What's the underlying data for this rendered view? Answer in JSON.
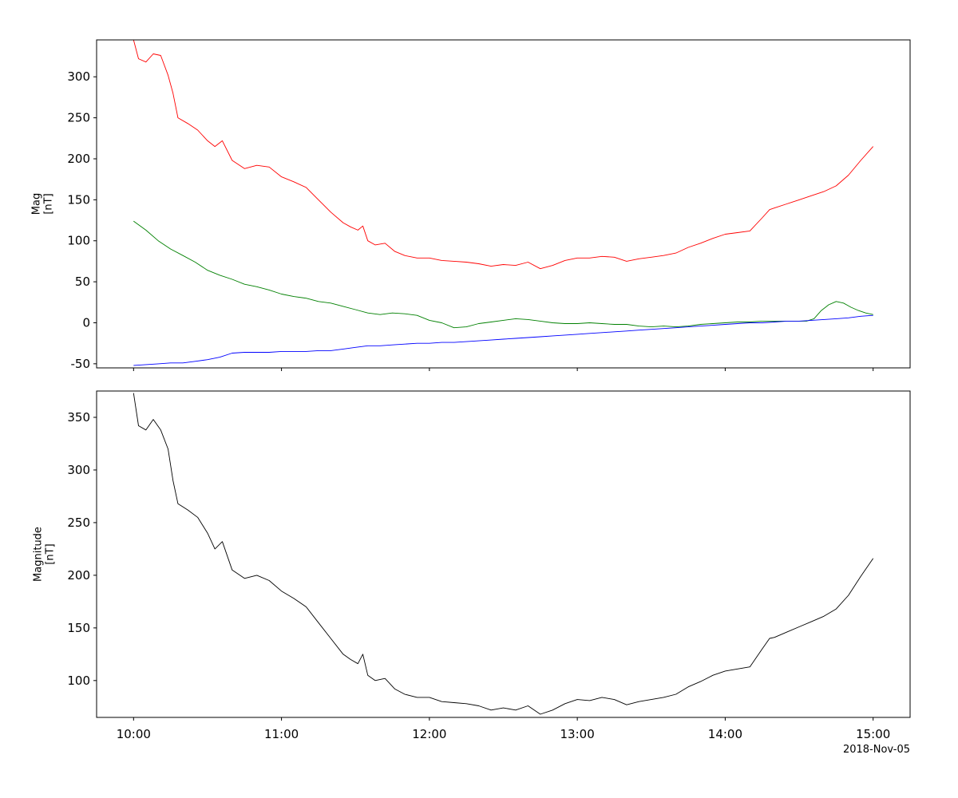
{
  "chart_data": [
    {
      "type": "line",
      "ylabel": "Mag",
      "yunit": "[nT]",
      "ylim": [
        -55,
        345
      ],
      "yticks": [
        -50,
        0,
        50,
        100,
        150,
        200,
        250,
        300
      ],
      "xlim": [
        "09:45",
        "15:15"
      ],
      "xticks": [
        "10:00",
        "11:00",
        "12:00",
        "13:00",
        "14:00",
        "15:00"
      ],
      "show_x_tick_labels": false,
      "grid": false,
      "series": [
        {
          "color": "#ff0000",
          "points": [
            [
              "10:00",
              345
            ],
            [
              "10:02",
              322
            ],
            [
              "10:05",
              318
            ],
            [
              "10:08",
              328
            ],
            [
              "10:11",
              326
            ],
            [
              "10:14",
              302
            ],
            [
              "10:16",
              280
            ],
            [
              "10:18",
              250
            ],
            [
              "10:22",
              243
            ],
            [
              "10:26",
              235
            ],
            [
              "10:30",
              222
            ],
            [
              "10:33",
              215
            ],
            [
              "10:36",
              222
            ],
            [
              "10:40",
              198
            ],
            [
              "10:45",
              188
            ],
            [
              "10:50",
              192
            ],
            [
              "10:55",
              190
            ],
            [
              "11:00",
              178
            ],
            [
              "11:05",
              172
            ],
            [
              "11:10",
              165
            ],
            [
              "11:15",
              150
            ],
            [
              "11:20",
              135
            ],
            [
              "11:25",
              122
            ],
            [
              "11:28",
              117
            ],
            [
              "11:31",
              113
            ],
            [
              "11:33",
              118
            ],
            [
              "11:35",
              100
            ],
            [
              "11:38",
              95
            ],
            [
              "11:42",
              97
            ],
            [
              "11:46",
              87
            ],
            [
              "11:50",
              82
            ],
            [
              "11:55",
              79
            ],
            [
              "12:00",
              79
            ],
            [
              "12:05",
              76
            ],
            [
              "12:10",
              75
            ],
            [
              "12:15",
              74
            ],
            [
              "12:20",
              72
            ],
            [
              "12:25",
              69
            ],
            [
              "12:30",
              71
            ],
            [
              "12:35",
              70
            ],
            [
              "12:40",
              74
            ],
            [
              "12:45",
              66
            ],
            [
              "12:50",
              70
            ],
            [
              "12:55",
              76
            ],
            [
              "13:00",
              79
            ],
            [
              "13:05",
              79
            ],
            [
              "13:10",
              81
            ],
            [
              "13:15",
              80
            ],
            [
              "13:20",
              75
            ],
            [
              "13:25",
              78
            ],
            [
              "13:30",
              80
            ],
            [
              "13:35",
              82
            ],
            [
              "13:40",
              85
            ],
            [
              "13:45",
              92
            ],
            [
              "13:50",
              97
            ],
            [
              "13:55",
              103
            ],
            [
              "14:00",
              108
            ],
            [
              "14:05",
              110
            ],
            [
              "14:10",
              112
            ],
            [
              "14:15",
              128
            ],
            [
              "14:18",
              138
            ],
            [
              "14:20",
              140
            ],
            [
              "14:25",
              145
            ],
            [
              "14:30",
              150
            ],
            [
              "14:35",
              155
            ],
            [
              "14:40",
              160
            ],
            [
              "14:45",
              167
            ],
            [
              "14:50",
              180
            ],
            [
              "14:55",
              198
            ],
            [
              "15:00",
              215
            ]
          ]
        },
        {
          "color": "#008000",
          "points": [
            [
              "10:00",
              124
            ],
            [
              "10:05",
              113
            ],
            [
              "10:10",
              100
            ],
            [
              "10:15",
              90
            ],
            [
              "10:20",
              82
            ],
            [
              "10:25",
              74
            ],
            [
              "10:30",
              64
            ],
            [
              "10:35",
              58
            ],
            [
              "10:40",
              53
            ],
            [
              "10:45",
              47
            ],
            [
              "10:50",
              44
            ],
            [
              "10:55",
              40
            ],
            [
              "11:00",
              35
            ],
            [
              "11:05",
              32
            ],
            [
              "11:10",
              30
            ],
            [
              "11:15",
              26
            ],
            [
              "11:20",
              24
            ],
            [
              "11:25",
              20
            ],
            [
              "11:30",
              16
            ],
            [
              "11:35",
              12
            ],
            [
              "11:40",
              10
            ],
            [
              "11:45",
              12
            ],
            [
              "11:50",
              11
            ],
            [
              "11:55",
              9
            ],
            [
              "12:00",
              3
            ],
            [
              "12:05",
              0
            ],
            [
              "12:10",
              -6
            ],
            [
              "12:15",
              -5
            ],
            [
              "12:20",
              -1
            ],
            [
              "12:25",
              1
            ],
            [
              "12:30",
              3
            ],
            [
              "12:35",
              5
            ],
            [
              "12:40",
              4
            ],
            [
              "12:45",
              2
            ],
            [
              "12:50",
              0
            ],
            [
              "12:55",
              -1
            ],
            [
              "13:00",
              -1
            ],
            [
              "13:05",
              0
            ],
            [
              "13:10",
              -1
            ],
            [
              "13:15",
              -2
            ],
            [
              "13:20",
              -2
            ],
            [
              "13:25",
              -4
            ],
            [
              "13:30",
              -5
            ],
            [
              "13:35",
              -4
            ],
            [
              "13:40",
              -5
            ],
            [
              "13:45",
              -4
            ],
            [
              "13:50",
              -2
            ],
            [
              "13:55",
              -1
            ],
            [
              "14:00",
              0
            ],
            [
              "14:05",
              1
            ],
            [
              "14:10",
              1
            ],
            [
              "14:15",
              2
            ],
            [
              "14:20",
              2
            ],
            [
              "14:25",
              2
            ],
            [
              "14:30",
              2
            ],
            [
              "14:33",
              2
            ],
            [
              "14:36",
              5
            ],
            [
              "14:39",
              15
            ],
            [
              "14:42",
              22
            ],
            [
              "14:45",
              26
            ],
            [
              "14:48",
              24
            ],
            [
              "14:51",
              19
            ],
            [
              "14:54",
              15
            ],
            [
              "14:57",
              12
            ],
            [
              "15:00",
              10
            ]
          ]
        },
        {
          "color": "#0000ff",
          "points": [
            [
              "10:00",
              -52
            ],
            [
              "10:05",
              -51
            ],
            [
              "10:10",
              -50
            ],
            [
              "10:15",
              -49
            ],
            [
              "10:20",
              -49
            ],
            [
              "10:25",
              -47
            ],
            [
              "10:30",
              -45
            ],
            [
              "10:35",
              -42
            ],
            [
              "10:40",
              -37
            ],
            [
              "10:45",
              -36
            ],
            [
              "10:50",
              -36
            ],
            [
              "10:55",
              -36
            ],
            [
              "11:00",
              -35
            ],
            [
              "11:05",
              -35
            ],
            [
              "11:10",
              -35
            ],
            [
              "11:15",
              -34
            ],
            [
              "11:20",
              -34
            ],
            [
              "11:25",
              -32
            ],
            [
              "11:30",
              -30
            ],
            [
              "11:35",
              -28
            ],
            [
              "11:40",
              -28
            ],
            [
              "11:45",
              -27
            ],
            [
              "11:50",
              -26
            ],
            [
              "11:55",
              -25
            ],
            [
              "12:00",
              -25
            ],
            [
              "12:05",
              -24
            ],
            [
              "12:10",
              -24
            ],
            [
              "12:15",
              -23
            ],
            [
              "12:20",
              -22
            ],
            [
              "12:25",
              -21
            ],
            [
              "12:30",
              -20
            ],
            [
              "12:35",
              -19
            ],
            [
              "12:40",
              -18
            ],
            [
              "12:45",
              -17
            ],
            [
              "12:50",
              -16
            ],
            [
              "12:55",
              -15
            ],
            [
              "13:00",
              -14
            ],
            [
              "13:05",
              -13
            ],
            [
              "13:10",
              -12
            ],
            [
              "13:15",
              -11
            ],
            [
              "13:20",
              -10
            ],
            [
              "13:25",
              -9
            ],
            [
              "13:30",
              -8
            ],
            [
              "13:35",
              -7
            ],
            [
              "13:40",
              -6
            ],
            [
              "13:45",
              -5
            ],
            [
              "13:50",
              -4
            ],
            [
              "13:55",
              -3
            ],
            [
              "14:00",
              -2
            ],
            [
              "14:05",
              -1
            ],
            [
              "14:10",
              0
            ],
            [
              "14:15",
              0
            ],
            [
              "14:20",
              1
            ],
            [
              "14:25",
              2
            ],
            [
              "14:30",
              2
            ],
            [
              "14:35",
              3
            ],
            [
              "14:40",
              4
            ],
            [
              "14:45",
              5
            ],
            [
              "14:50",
              6
            ],
            [
              "14:55",
              8
            ],
            [
              "15:00",
              9
            ]
          ]
        }
      ]
    },
    {
      "type": "line",
      "ylabel": "Magnitude",
      "yunit": "[nT]",
      "ylim": [
        65,
        375
      ],
      "yticks": [
        100,
        150,
        200,
        250,
        300,
        350
      ],
      "xlim": [
        "09:45",
        "15:15"
      ],
      "xticks": [
        "10:00",
        "11:00",
        "12:00",
        "13:00",
        "14:00",
        "15:00"
      ],
      "show_x_tick_labels": true,
      "grid": false,
      "series": [
        {
          "color": "#000000",
          "points": [
            [
              "10:00",
              373
            ],
            [
              "10:02",
              342
            ],
            [
              "10:05",
              338
            ],
            [
              "10:08",
              348
            ],
            [
              "10:11",
              338
            ],
            [
              "10:14",
              320
            ],
            [
              "10:16",
              290
            ],
            [
              "10:18",
              268
            ],
            [
              "10:22",
              262
            ],
            [
              "10:26",
              255
            ],
            [
              "10:30",
              240
            ],
            [
              "10:33",
              225
            ],
            [
              "10:36",
              232
            ],
            [
              "10:40",
              205
            ],
            [
              "10:45",
              197
            ],
            [
              "10:50",
              200
            ],
            [
              "10:55",
              195
            ],
            [
              "11:00",
              185
            ],
            [
              "11:05",
              178
            ],
            [
              "11:10",
              170
            ],
            [
              "11:15",
              155
            ],
            [
              "11:20",
              140
            ],
            [
              "11:25",
              125
            ],
            [
              "11:28",
              120
            ],
            [
              "11:31",
              116
            ],
            [
              "11:33",
              125
            ],
            [
              "11:35",
              105
            ],
            [
              "11:38",
              100
            ],
            [
              "11:42",
              102
            ],
            [
              "11:46",
              92
            ],
            [
              "11:50",
              87
            ],
            [
              "11:55",
              84
            ],
            [
              "12:00",
              84
            ],
            [
              "12:05",
              80
            ],
            [
              "12:10",
              79
            ],
            [
              "12:15",
              78
            ],
            [
              "12:20",
              76
            ],
            [
              "12:25",
              72
            ],
            [
              "12:30",
              74
            ],
            [
              "12:35",
              72
            ],
            [
              "12:40",
              76
            ],
            [
              "12:45",
              68
            ],
            [
              "12:50",
              72
            ],
            [
              "12:55",
              78
            ],
            [
              "13:00",
              82
            ],
            [
              "13:05",
              81
            ],
            [
              "13:10",
              84
            ],
            [
              "13:15",
              82
            ],
            [
              "13:20",
              77
            ],
            [
              "13:25",
              80
            ],
            [
              "13:30",
              82
            ],
            [
              "13:35",
              84
            ],
            [
              "13:40",
              87
            ],
            [
              "13:45",
              94
            ],
            [
              "13:50",
              99
            ],
            [
              "13:55",
              105
            ],
            [
              "14:00",
              109
            ],
            [
              "14:05",
              111
            ],
            [
              "14:10",
              113
            ],
            [
              "14:15",
              130
            ],
            [
              "14:18",
              140
            ],
            [
              "14:20",
              141
            ],
            [
              "14:25",
              146
            ],
            [
              "14:30",
              151
            ],
            [
              "14:35",
              156
            ],
            [
              "14:40",
              161
            ],
            [
              "14:45",
              168
            ],
            [
              "14:50",
              181
            ],
            [
              "14:55",
              199
            ],
            [
              "15:00",
              216
            ]
          ]
        }
      ]
    }
  ],
  "date_label": "2018-Nov-05"
}
